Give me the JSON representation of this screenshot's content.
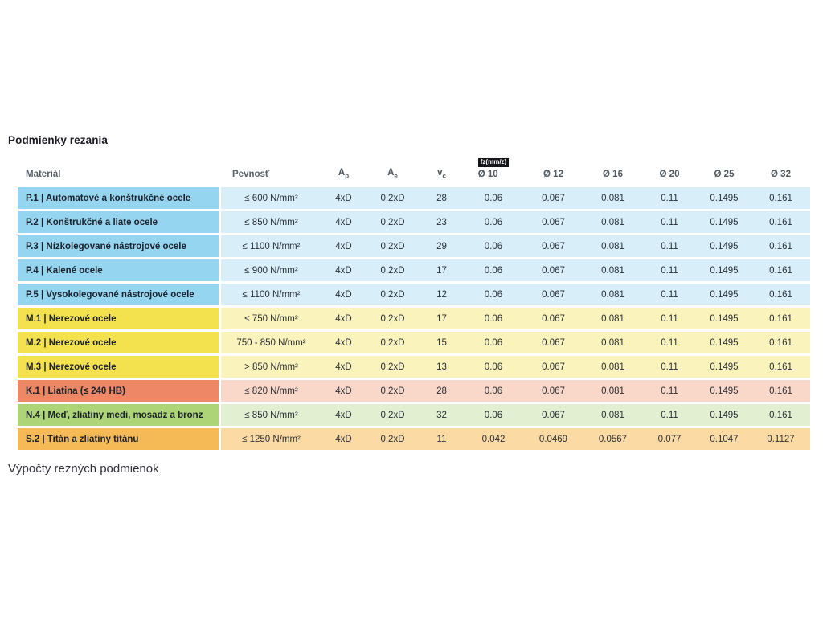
{
  "page": {
    "title": "Podmienky rezania",
    "section_footer": "Výpočty rezných podmienok"
  },
  "table": {
    "headers": {
      "material": "Materiál",
      "strength": "Pevnosť",
      "ap_base": "A",
      "ap_sub": "p",
      "ae_base": "A",
      "ae_sub": "e",
      "vc_base": "v",
      "vc_sub": "c",
      "fz_badge": "fz(mm/z)",
      "diameters": [
        "Ø 10",
        "Ø 12",
        "Ø 16",
        "Ø 20",
        "Ø 25",
        "Ø 32"
      ]
    },
    "colors": {
      "P": {
        "dark": "#95d5f0",
        "light": "#d8effa"
      },
      "M": {
        "dark": "#f3e14e",
        "light": "#faf3bc"
      },
      "K": {
        "dark": "#ee8765",
        "light": "#f9d8c9"
      },
      "N": {
        "dark": "#aed478",
        "light": "#e2efd1"
      },
      "S": {
        "dark": "#f5ba55",
        "light": "#fbdaa3"
      }
    },
    "rows": [
      {
        "group": "P",
        "material": "P.1 | Automatové a konštrukčné ocele",
        "strength": "≤ 600 N/mm²",
        "ap": "4xD",
        "ae": "0,2xD",
        "vc": "28",
        "fz": [
          "0.06",
          "0.067",
          "0.081",
          "0.11",
          "0.1495",
          "0.161"
        ]
      },
      {
        "group": "P",
        "material": "P.2 | Konštrukčné a liate ocele",
        "strength": "≤ 850 N/mm²",
        "ap": "4xD",
        "ae": "0,2xD",
        "vc": "23",
        "fz": [
          "0.06",
          "0.067",
          "0.081",
          "0.11",
          "0.1495",
          "0.161"
        ]
      },
      {
        "group": "P",
        "material": "P.3 | Nízkolegované nástrojové ocele",
        "strength": "≤ 1100 N/mm²",
        "ap": "4xD",
        "ae": "0,2xD",
        "vc": "29",
        "fz": [
          "0.06",
          "0.067",
          "0.081",
          "0.11",
          "0.1495",
          "0.161"
        ]
      },
      {
        "group": "P",
        "material": "P.4 | Kalené ocele",
        "strength": "≤ 900 N/mm²",
        "ap": "4xD",
        "ae": "0,2xD",
        "vc": "17",
        "fz": [
          "0.06",
          "0.067",
          "0.081",
          "0.11",
          "0.1495",
          "0.161"
        ]
      },
      {
        "group": "P",
        "material": "P.5 | Vysokolegované nástrojové ocele",
        "strength": "≤ 1100 N/mm²",
        "ap": "4xD",
        "ae": "0,2xD",
        "vc": "12",
        "fz": [
          "0.06",
          "0.067",
          "0.081",
          "0.11",
          "0.1495",
          "0.161"
        ]
      },
      {
        "group": "M",
        "material": "M.1 | Nerezové ocele",
        "strength": "≤ 750 N/mm²",
        "ap": "4xD",
        "ae": "0,2xD",
        "vc": "17",
        "fz": [
          "0.06",
          "0.067",
          "0.081",
          "0.11",
          "0.1495",
          "0.161"
        ]
      },
      {
        "group": "M",
        "material": "M.2 | Nerezové ocele",
        "strength": "750 - 850 N/mm²",
        "ap": "4xD",
        "ae": "0,2xD",
        "vc": "15",
        "fz": [
          "0.06",
          "0.067",
          "0.081",
          "0.11",
          "0.1495",
          "0.161"
        ]
      },
      {
        "group": "M",
        "material": "M.3 | Nerezové ocele",
        "strength": "> 850 N/mm²",
        "ap": "4xD",
        "ae": "0,2xD",
        "vc": "13",
        "fz": [
          "0.06",
          "0.067",
          "0.081",
          "0.11",
          "0.1495",
          "0.161"
        ]
      },
      {
        "group": "K",
        "material": "K.1 | Liatina (≤ 240 HB)",
        "strength": "≤ 820 N/mm²",
        "ap": "4xD",
        "ae": "0,2xD",
        "vc": "28",
        "fz": [
          "0.06",
          "0.067",
          "0.081",
          "0.11",
          "0.1495",
          "0.161"
        ]
      },
      {
        "group": "N",
        "material": "N.4 | Meď, zliatiny medi, mosadz a bronz",
        "strength": "≤ 850 N/mm²",
        "ap": "4xD",
        "ae": "0,2xD",
        "vc": "32",
        "fz": [
          "0.06",
          "0.067",
          "0.081",
          "0.11",
          "0.1495",
          "0.161"
        ]
      },
      {
        "group": "S",
        "material": "S.2 | Titán a zliatiny titánu",
        "strength": "≤ 1250 N/mm²",
        "ap": "4xD",
        "ae": "0,2xD",
        "vc": "11",
        "fz": [
          "0.042",
          "0.0469",
          "0.0567",
          "0.077",
          "0.1047",
          "0.1127"
        ]
      }
    ]
  }
}
